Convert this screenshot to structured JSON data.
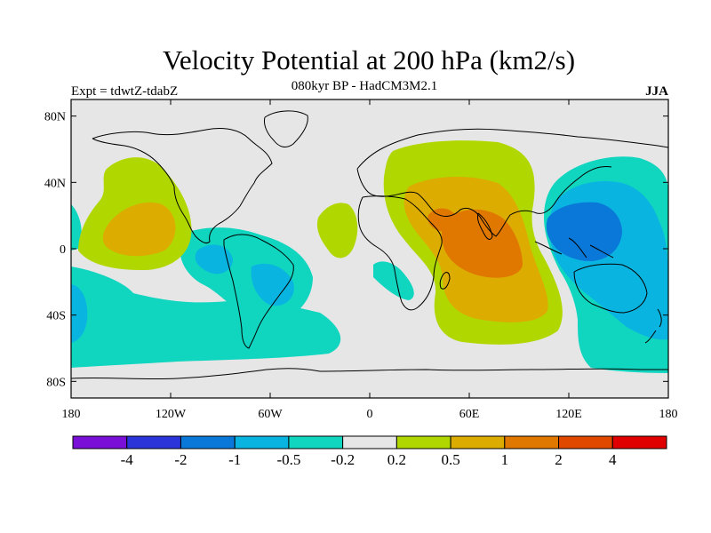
{
  "header": {
    "title": "Velocity Potential at 200 hPa (km2/s)",
    "subtitle": "080kyr BP - HadCM3M2.1",
    "experiment": "Expt = tdwtZ-tdabZ",
    "season": "JJA"
  },
  "map": {
    "projection": "cylindrical-equidistant",
    "lon_range": [
      -180,
      180
    ],
    "lat_range": [
      -90,
      90
    ],
    "background_color": "#e6e6e6",
    "lon_ticks": [
      {
        "value": -180,
        "label": "180"
      },
      {
        "value": -120,
        "label": "120W"
      },
      {
        "value": -60,
        "label": "60W"
      },
      {
        "value": 0,
        "label": "0"
      },
      {
        "value": 60,
        "label": "60E"
      },
      {
        "value": 120,
        "label": "120E"
      },
      {
        "value": 180,
        "label": "180"
      }
    ],
    "lat_ticks": [
      {
        "value": 80,
        "label": "80N"
      },
      {
        "value": 40,
        "label": "40N"
      },
      {
        "value": 0,
        "label": "0"
      },
      {
        "value": -40,
        "label": "40S"
      },
      {
        "value": -80,
        "label": "80S"
      }
    ]
  },
  "colorbar": {
    "colors": [
      "#7a10d8",
      "#2a34d8",
      "#0a78d8",
      "#0ab4e0",
      "#10d6c0",
      "#e6e6e6",
      "#b0d800",
      "#dcac00",
      "#e07800",
      "#e04800",
      "#e00000"
    ],
    "labels": [
      "-4",
      "-2",
      "-1",
      "-0.5",
      "-0.2",
      "0.2",
      "0.5",
      "1",
      "2",
      "4"
    ]
  }
}
